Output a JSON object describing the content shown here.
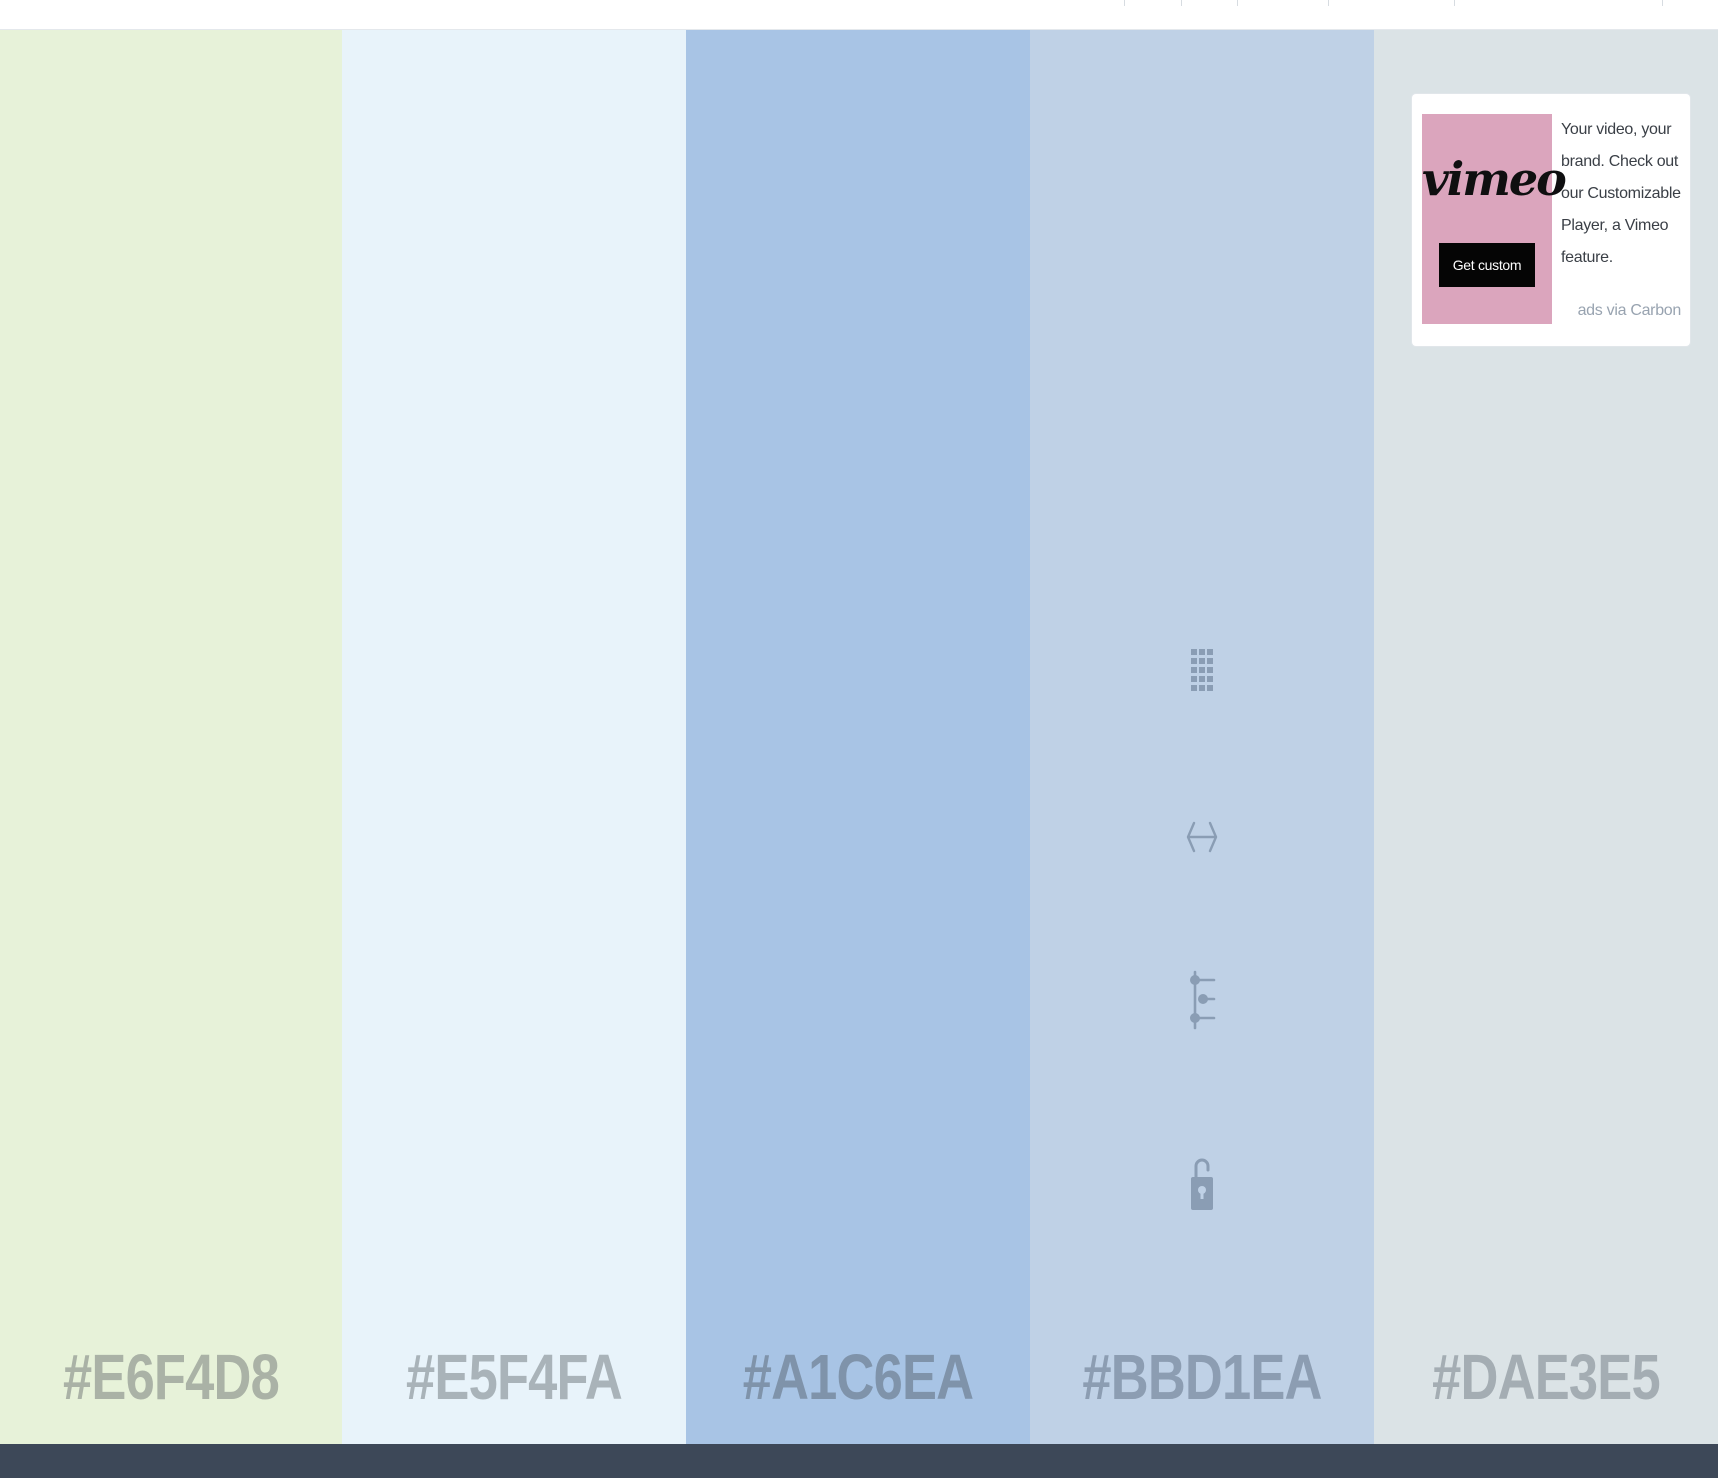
{
  "swatches": [
    {
      "hex": "#E6F4D8",
      "label": "#E6F4D8",
      "label_color": "#aab2a6"
    },
    {
      "hex": "#E5F4FA",
      "label": "#E5F4FA",
      "label_color": "#a9b3b9"
    },
    {
      "hex": "#A1C6EA",
      "label": "#A1C6EA",
      "label_color": "#7f93aa"
    },
    {
      "hex": "#BBD1EA",
      "label": "#BBD1EA",
      "label_color": "#8c9db2"
    },
    {
      "hex": "#DAE3E5",
      "label": "#DAE3E5",
      "label_color": "#a4adb3"
    }
  ],
  "swatch_display_colors": [
    "#e7f2d9",
    "#e8f3fa",
    "#a8c4e5",
    "#bfd1e6",
    "#dbe3e6"
  ],
  "tools": [
    "shades-icon",
    "drag-icon",
    "adjust-icon",
    "lock-icon"
  ],
  "tool_color": "#8a9db4",
  "ad": {
    "brand": "vimeo",
    "button_label": "Get custom",
    "text": "Your video, your brand. Check out our Customizable Player, a Vimeo feature.",
    "via": "ads via Carbon"
  },
  "colors": {
    "topbar": "#ffffff",
    "footer": "#3d4858"
  }
}
